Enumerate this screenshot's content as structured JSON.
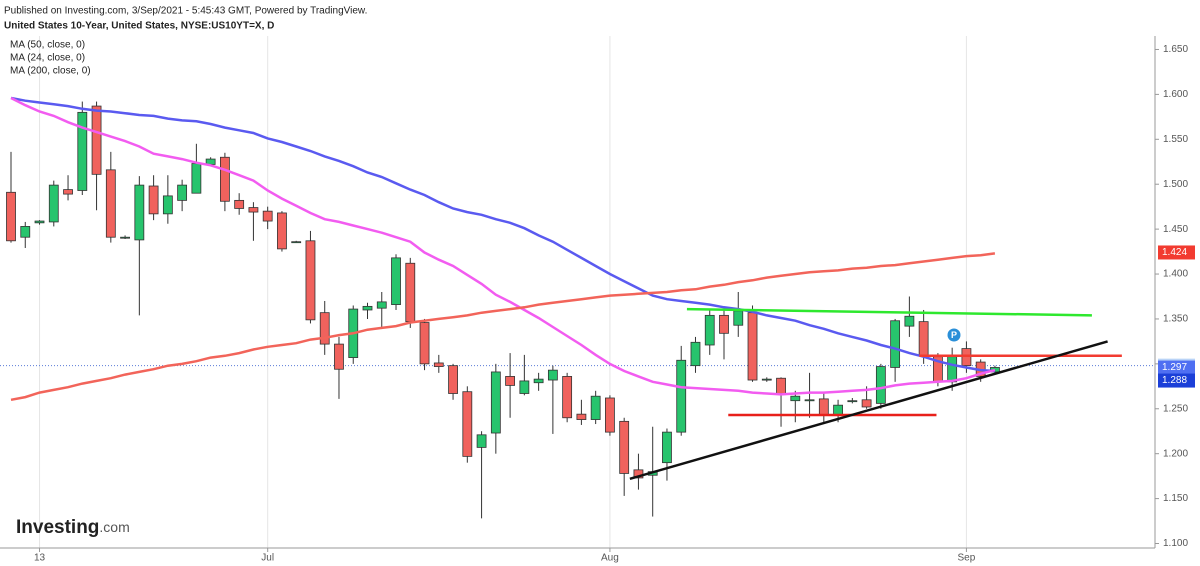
{
  "chart_data": {
    "type": "candlestick",
    "published": "Published on Investing.com, 3/Sep/2021 - 5:45:43 GMT, Powered by TradingView.",
    "title": "United States 10-Year, United States, NYSE:US10YT=X, D",
    "logo": {
      "name": "Investing",
      "suffix": ".com"
    },
    "event_marker": "P",
    "categories": [
      null,
      null,
      "13",
      null,
      null,
      null,
      null,
      null,
      null,
      null,
      null,
      null,
      null,
      null,
      null,
      null,
      null,
      null,
      "Jul",
      null,
      null,
      null,
      null,
      null,
      null,
      null,
      null,
      null,
      null,
      null,
      null,
      null,
      null,
      null,
      null,
      null,
      null,
      null,
      null,
      null,
      null,
      null,
      "Aug",
      null,
      null,
      null,
      null,
      null,
      null,
      null,
      null,
      null,
      null,
      null,
      null,
      null,
      null,
      null,
      null,
      null,
      null,
      null,
      null,
      null,
      null,
      null,
      null,
      "Sep",
      null,
      null
    ],
    "open": [
      1.491,
      1.441,
      1.457,
      1.458,
      1.494,
      1.493,
      1.587,
      1.516,
      1.441,
      1.438,
      1.498,
      1.467,
      1.482,
      1.49,
      1.522,
      1.53,
      1.482,
      1.474,
      1.47,
      1.468,
      1.436,
      1.437,
      1.357,
      1.322,
      1.307,
      1.36,
      1.362,
      1.366,
      1.412,
      1.346,
      1.301,
      1.298,
      1.269,
      1.207,
      1.223,
      1.286,
      1.267,
      1.279,
      1.282,
      1.286,
      1.244,
      1.238,
      1.262,
      1.236,
      1.182,
      1.176,
      1.19,
      1.224,
      1.298,
      1.321,
      1.354,
      1.343,
      1.357,
      1.283,
      1.284,
      1.259,
      1.26,
      1.261,
      1.243,
      1.259,
      1.26,
      1.256,
      1.296,
      1.342,
      1.347,
      1.308,
      1.28,
      1.317,
      1.302,
      1.291
    ],
    "high": [
      1.536,
      1.458,
      1.46,
      1.504,
      1.51,
      1.592,
      1.592,
      1.536,
      1.443,
      1.509,
      1.51,
      1.51,
      1.505,
      1.545,
      1.53,
      1.535,
      1.49,
      1.48,
      1.475,
      1.47,
      1.437,
      1.448,
      1.37,
      1.33,
      1.365,
      1.368,
      1.38,
      1.422,
      1.418,
      1.35,
      1.31,
      1.3,
      1.275,
      1.225,
      1.3,
      1.312,
      1.31,
      1.29,
      1.298,
      1.29,
      1.26,
      1.27,
      1.265,
      1.24,
      1.2,
      1.23,
      1.228,
      1.32,
      1.33,
      1.36,
      1.36,
      1.38,
      1.365,
      1.285,
      1.285,
      1.27,
      1.29,
      1.268,
      1.26,
      1.262,
      1.275,
      1.3,
      1.35,
      1.375,
      1.36,
      1.312,
      1.318,
      1.325,
      1.305,
      1.298
    ],
    "low": [
      1.435,
      1.429,
      1.455,
      1.453,
      1.482,
      1.488,
      1.471,
      1.435,
      1.439,
      1.354,
      1.46,
      1.456,
      1.47,
      1.49,
      1.52,
      1.47,
      1.466,
      1.437,
      1.45,
      1.425,
      1.435,
      1.345,
      1.31,
      1.261,
      1.3,
      1.35,
      1.34,
      1.36,
      1.34,
      1.293,
      1.29,
      1.26,
      1.19,
      1.128,
      1.2,
      1.24,
      1.265,
      1.27,
      1.222,
      1.235,
      1.232,
      1.233,
      1.22,
      1.153,
      1.16,
      1.13,
      1.17,
      1.22,
      1.29,
      1.31,
      1.305,
      1.33,
      1.28,
      1.28,
      1.23,
      1.235,
      1.24,
      1.235,
      1.235,
      1.256,
      1.25,
      1.25,
      1.28,
      1.33,
      1.3,
      1.275,
      1.27,
      1.29,
      1.28,
      1.288
    ],
    "close": [
      1.437,
      1.453,
      1.459,
      1.499,
      1.489,
      1.58,
      1.511,
      1.441,
      1.441,
      1.499,
      1.467,
      1.487,
      1.499,
      1.523,
      1.528,
      1.481,
      1.473,
      1.469,
      1.459,
      1.428,
      1.436,
      1.349,
      1.322,
      1.294,
      1.361,
      1.364,
      1.369,
      1.418,
      1.347,
      1.3,
      1.297,
      1.267,
      1.197,
      1.221,
      1.291,
      1.276,
      1.281,
      1.283,
      1.293,
      1.24,
      1.238,
      1.264,
      1.224,
      1.178,
      1.173,
      1.18,
      1.224,
      1.304,
      1.324,
      1.354,
      1.334,
      1.359,
      1.282,
      1.283,
      1.267,
      1.264,
      1.26,
      1.243,
      1.254,
      1.259,
      1.252,
      1.297,
      1.348,
      1.353,
      1.309,
      1.28,
      1.308,
      1.298,
      1.286,
      1.296
    ],
    "up_color": "#27c46d",
    "down_color": "#f0625d",
    "series": [
      {
        "name": "MA (50, close, 0)",
        "color": "#5a5af0",
        "values": [
          1.596,
          1.593,
          1.591,
          1.589,
          1.587,
          1.584,
          1.582,
          1.581,
          1.579,
          1.577,
          1.576,
          1.573,
          1.571,
          1.57,
          1.567,
          1.563,
          1.56,
          1.557,
          1.551,
          1.547,
          1.542,
          1.537,
          1.531,
          1.526,
          1.52,
          1.513,
          1.508,
          1.501,
          1.494,
          1.488,
          1.48,
          1.473,
          1.469,
          1.466,
          1.461,
          1.457,
          1.451,
          1.443,
          1.436,
          1.427,
          1.418,
          1.409,
          1.4,
          1.392,
          1.384,
          1.376,
          1.372,
          1.37,
          1.368,
          1.366,
          1.363,
          1.361,
          1.358,
          1.354,
          1.351,
          1.348,
          1.343,
          1.339,
          1.334,
          1.33,
          1.326,
          1.321,
          1.317,
          1.312,
          1.308,
          1.303,
          1.299,
          1.296,
          1.293,
          1.292
        ]
      },
      {
        "name": "MA (24, close, 0)",
        "color": "#f25cf0",
        "values": [
          1.596,
          1.588,
          1.581,
          1.576,
          1.569,
          1.563,
          1.558,
          1.553,
          1.548,
          1.542,
          1.534,
          1.531,
          1.528,
          1.524,
          1.521,
          1.516,
          1.51,
          1.504,
          1.493,
          1.484,
          1.476,
          1.468,
          1.461,
          1.458,
          1.454,
          1.45,
          1.446,
          1.441,
          1.436,
          1.424,
          1.416,
          1.409,
          1.399,
          1.389,
          1.377,
          1.369,
          1.36,
          1.351,
          1.341,
          1.331,
          1.321,
          1.31,
          1.3,
          1.292,
          1.286,
          1.28,
          1.277,
          1.274,
          1.273,
          1.272,
          1.271,
          1.27,
          1.268,
          1.267,
          1.266,
          1.267,
          1.268,
          1.268,
          1.269,
          1.27,
          1.271,
          1.273,
          1.276,
          1.278,
          1.279,
          1.28,
          1.281,
          1.284,
          1.289,
          1.293
        ]
      },
      {
        "name": "MA (200, close, 0)",
        "color": "#f2645a",
        "values": [
          1.26,
          1.263,
          1.268,
          1.271,
          1.274,
          1.278,
          1.281,
          1.284,
          1.288,
          1.291,
          1.294,
          1.298,
          1.3,
          1.303,
          1.307,
          1.309,
          1.312,
          1.316,
          1.319,
          1.321,
          1.323,
          1.327,
          1.329,
          1.332,
          1.334,
          1.338,
          1.34,
          1.342,
          1.346,
          1.348,
          1.35,
          1.352,
          1.354,
          1.357,
          1.359,
          1.361,
          1.363,
          1.366,
          1.368,
          1.37,
          1.372,
          1.374,
          1.376,
          1.377,
          1.378,
          1.379,
          1.38,
          1.382,
          1.383,
          1.386,
          1.388,
          1.391,
          1.393,
          1.396,
          1.398,
          1.4,
          1.402,
          1.403,
          1.404,
          1.406,
          1.407,
          1.409,
          1.41,
          1.412,
          1.414,
          1.416,
          1.418,
          1.42,
          1.421,
          1.423
        ]
      }
    ],
    "drawings": [
      {
        "color": "#2ee82e",
        "x": [
          47.4,
          75.8
        ],
        "y": [
          1.361,
          1.354
        ]
      },
      {
        "color": "#f23b30",
        "x": [
          63.7,
          77.9
        ],
        "y": [
          1.309,
          1.309
        ]
      },
      {
        "color": "#e8201a",
        "x": [
          50.3,
          64.9
        ],
        "y": [
          1.243,
          1.243
        ]
      },
      {
        "color": "#111111",
        "x": [
          43.4,
          76.9
        ],
        "y": [
          1.172,
          1.325
        ]
      }
    ],
    "price_labels": [
      {
        "value": 1.424,
        "color": "#f23b30",
        "text_color": "#ffffff"
      },
      {
        "value": 1.298,
        "color": "#b9d3f7",
        "text_color": "#1a2a6a"
      },
      {
        "value": 1.297,
        "color": "#4f6ff2",
        "text_color": "#ffffff"
      },
      {
        "value": 1.288,
        "color": "#1b3fd8",
        "text_color": "#ffffff"
      }
    ],
    "ylim": [
      1.095,
      1.665
    ],
    "yticks": [
      {
        "value": 1.1,
        "label": "1.100"
      },
      {
        "value": 1.15,
        "label": "1.150"
      },
      {
        "value": 1.2,
        "label": "1.200"
      },
      {
        "value": 1.25,
        "label": "1.250"
      },
      {
        "value": 1.3,
        "label": "1.300"
      },
      {
        "value": 1.35,
        "label": "1.350"
      },
      {
        "value": 1.4,
        "label": "1.400"
      },
      {
        "value": 1.45,
        "label": "1.450"
      },
      {
        "value": 1.5,
        "label": "1.500"
      },
      {
        "value": 1.55,
        "label": "1.550"
      },
      {
        "value": 1.6,
        "label": "1.600"
      },
      {
        "value": 1.65,
        "label": "1.650"
      }
    ]
  }
}
